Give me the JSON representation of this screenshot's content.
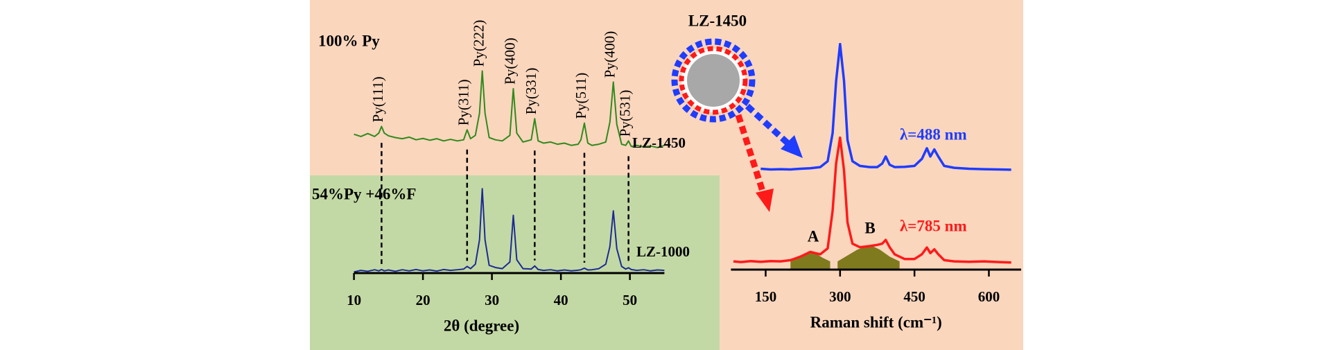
{
  "chart_data": [
    {
      "type": "line",
      "sample_labels": [
        "100% Py",
        "54%Py +46%F"
      ],
      "xlabel": "2θ (degree)",
      "xlim": [
        10,
        55
      ],
      "xticks": [
        10,
        20,
        30,
        40,
        50
      ],
      "ylim": [
        0,
        100
      ],
      "x": [
        10,
        11,
        12,
        13,
        13.6,
        14,
        14.4,
        15,
        16,
        17,
        18,
        19,
        20,
        21,
        22,
        23,
        24,
        25,
        25.9,
        26.4,
        26.9,
        27.6,
        28.2,
        28.6,
        29.0,
        29.6,
        30.5,
        31.5,
        32.6,
        33.1,
        33.6,
        34.5,
        35.7,
        36.2,
        36.7,
        37.5,
        38.5,
        39.5,
        40.5,
        41.5,
        42.5,
        42.9,
        43.4,
        43.9,
        44.5,
        45.5,
        46.5,
        47.1,
        47.6,
        48.1,
        48.8,
        49.4,
        49.8,
        50.2,
        51,
        52,
        53,
        54,
        55
      ],
      "series": [
        {
          "name": "LZ-1450",
          "color": "#2f8a1c",
          "values": [
            62.5,
            61.5,
            62.8,
            61.5,
            63,
            66,
            63,
            61.8,
            61,
            60.5,
            61.2,
            60,
            60.6,
            59.8,
            60.5,
            59.5,
            60.2,
            59.5,
            60,
            64.5,
            60.5,
            62,
            72,
            91,
            72,
            61,
            60,
            59.5,
            62,
            83,
            63,
            59,
            60,
            69.5,
            59.5,
            58.5,
            59,
            58,
            58.5,
            57.5,
            58,
            60,
            67.5,
            58.5,
            57.5,
            58,
            59,
            68,
            86,
            67,
            58,
            57.5,
            59.5,
            57,
            57.5,
            56.8,
            57.2,
            56.5,
            57.5
          ]
        },
        {
          "name": "LZ-1000",
          "color": "#1c2a94",
          "values": [
            0.5,
            1.2,
            0.8,
            1.5,
            1,
            1.6,
            1,
            1.4,
            0.8,
            1.5,
            1,
            1.6,
            1,
            1.4,
            0.9,
            1.6,
            1.2,
            1.5,
            1.8,
            3,
            2,
            4,
            15,
            38,
            15,
            3.5,
            2.5,
            2,
            5,
            26,
            6,
            2,
            1.8,
            3.2,
            1.6,
            1.2,
            1.5,
            1,
            1.4,
            1,
            1.3,
            1.5,
            2.2,
            1.4,
            1.5,
            2,
            4,
            12,
            28,
            11,
            3,
            1.8,
            2.4,
            1.6,
            1.2,
            1.5,
            1,
            1.4,
            1.2
          ]
        }
      ],
      "annotations": [
        {
          "label": "Py(111)",
          "x": 14,
          "line": true
        },
        {
          "label": "Py(311)",
          "x": 26.4,
          "line": true
        },
        {
          "label": "Py(222)",
          "x": 28.6,
          "line": false
        },
        {
          "label": "Py(400)",
          "x": 33.1,
          "line": false
        },
        {
          "label": "Py(331)",
          "x": 36.2,
          "line": true
        },
        {
          "label": "Py(511)",
          "x": 43.4,
          "line": true
        },
        {
          "label": "Py(400)",
          "x": 47.6,
          "line": false
        },
        {
          "label": "Py(531)",
          "x": 49.8,
          "line": true
        }
      ]
    },
    {
      "type": "line",
      "inset_label": "LZ-1450",
      "xlabel": "Raman shift (cm⁻¹)",
      "xlim": [
        80,
        665
      ],
      "xticks": [
        150,
        300,
        450,
        600
      ],
      "ylim": [
        0,
        100
      ],
      "x": [
        85,
        100,
        120,
        140,
        160,
        180,
        200,
        220,
        240,
        260,
        275,
        285,
        292,
        300,
        308,
        315,
        325,
        340,
        360,
        375,
        385,
        392,
        400,
        410,
        430,
        450,
        465,
        475,
        482,
        490,
        498,
        510,
        530,
        560,
        590,
        620,
        645
      ],
      "series": [
        {
          "name": "λ=488 nm",
          "color": "#1f3cff",
          "values": [
            null,
            null,
            null,
            42.8,
            42.5,
            42.6,
            42.5,
            42.8,
            43,
            43.5,
            46,
            58,
            80,
            95.7,
            80,
            55,
            46,
            44,
            43.5,
            43.5,
            45,
            48,
            44.5,
            43.5,
            43.6,
            44,
            47,
            51.5,
            48,
            51,
            48,
            44,
            43.2,
            42.8,
            42.6,
            42.5,
            42.4
          ]
        },
        {
          "name": "λ=785 nm",
          "color": "#ff1a1a",
          "values": [
            3.5,
            3.2,
            3.6,
            3.3,
            3.6,
            3.5,
            4,
            5.5,
            7.5,
            6.5,
            9,
            25,
            45,
            56,
            42,
            20,
            11,
            9.5,
            10,
            10.5,
            11,
            12.6,
            9.5,
            6.5,
            4.5,
            4.5,
            6.5,
            9.4,
            7,
            8.6,
            6.5,
            4,
            3.5,
            3.3,
            3.5,
            3.2,
            3
          ]
        }
      ],
      "fills": [
        {
          "name": "A",
          "color": "#7f7a1e",
          "x": [
            200,
            215,
            230,
            240,
            250,
            265,
            280
          ],
          "values": [
            3.5,
            5,
            7,
            7.5,
            7,
            5,
            3.5
          ]
        },
        {
          "name": "B",
          "color": "#7f7a1e",
          "x": [
            295,
            315,
            335,
            355,
            365,
            380,
            400,
            420
          ],
          "values": [
            3.5,
            6,
            8.5,
            10,
            10,
            8.5,
            5.5,
            3.5
          ]
        }
      ]
    }
  ]
}
